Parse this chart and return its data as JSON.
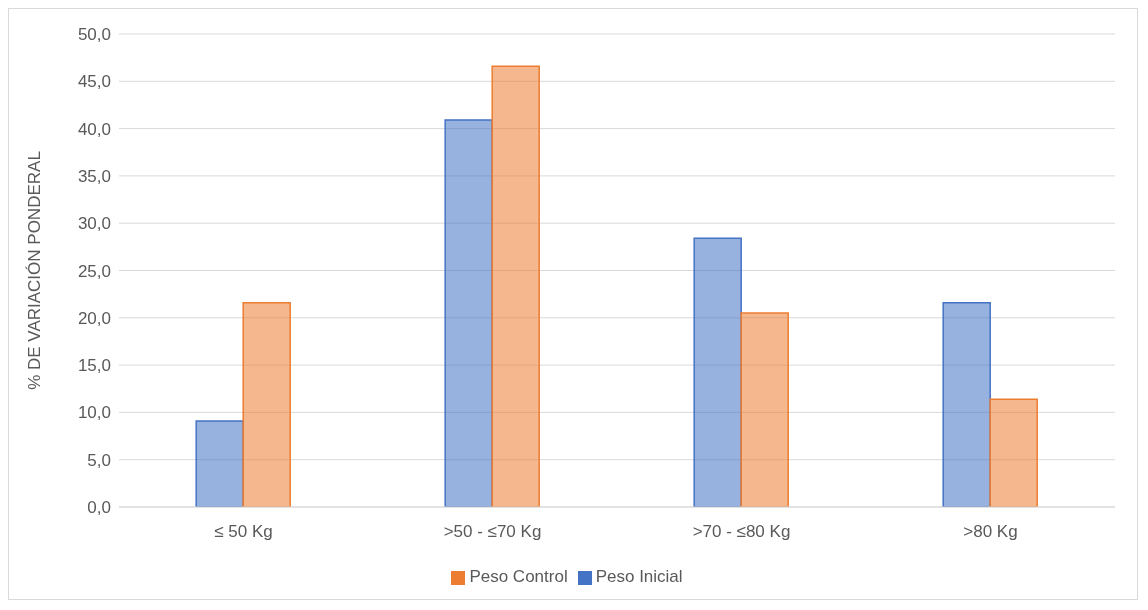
{
  "chart_data": {
    "type": "bar",
    "ylabel": "% DE VARIACIÓN PONDERAL",
    "categories": [
      "≤ 50 Kg",
      ">50 - ≤70 Kg",
      ">70 - ≤80 Kg",
      ">80 Kg"
    ],
    "series": [
      {
        "name": "Peso Inicial",
        "color": "#4472c4",
        "values": [
          9.1,
          40.9,
          28.4,
          21.6
        ]
      },
      {
        "name": "Peso Control",
        "color": "#ed7d31",
        "values": [
          21.6,
          46.6,
          20.5,
          11.4
        ]
      }
    ],
    "ylim": [
      0,
      50
    ],
    "yticks": [
      {
        "value": 0,
        "label": "0,0"
      },
      {
        "value": 5,
        "label": "5,0"
      },
      {
        "value": 10,
        "label": "10,0"
      },
      {
        "value": 15,
        "label": "15,0"
      },
      {
        "value": 20,
        "label": "20,0"
      },
      {
        "value": 25,
        "label": "25,0"
      },
      {
        "value": 30,
        "label": "30,0"
      },
      {
        "value": 35,
        "label": "35,0"
      },
      {
        "value": 40,
        "label": "40,0"
      },
      {
        "value": 45,
        "label": "45,0"
      },
      {
        "value": 50,
        "label": "50,0"
      }
    ],
    "grid": "y",
    "legend": "bottom"
  }
}
